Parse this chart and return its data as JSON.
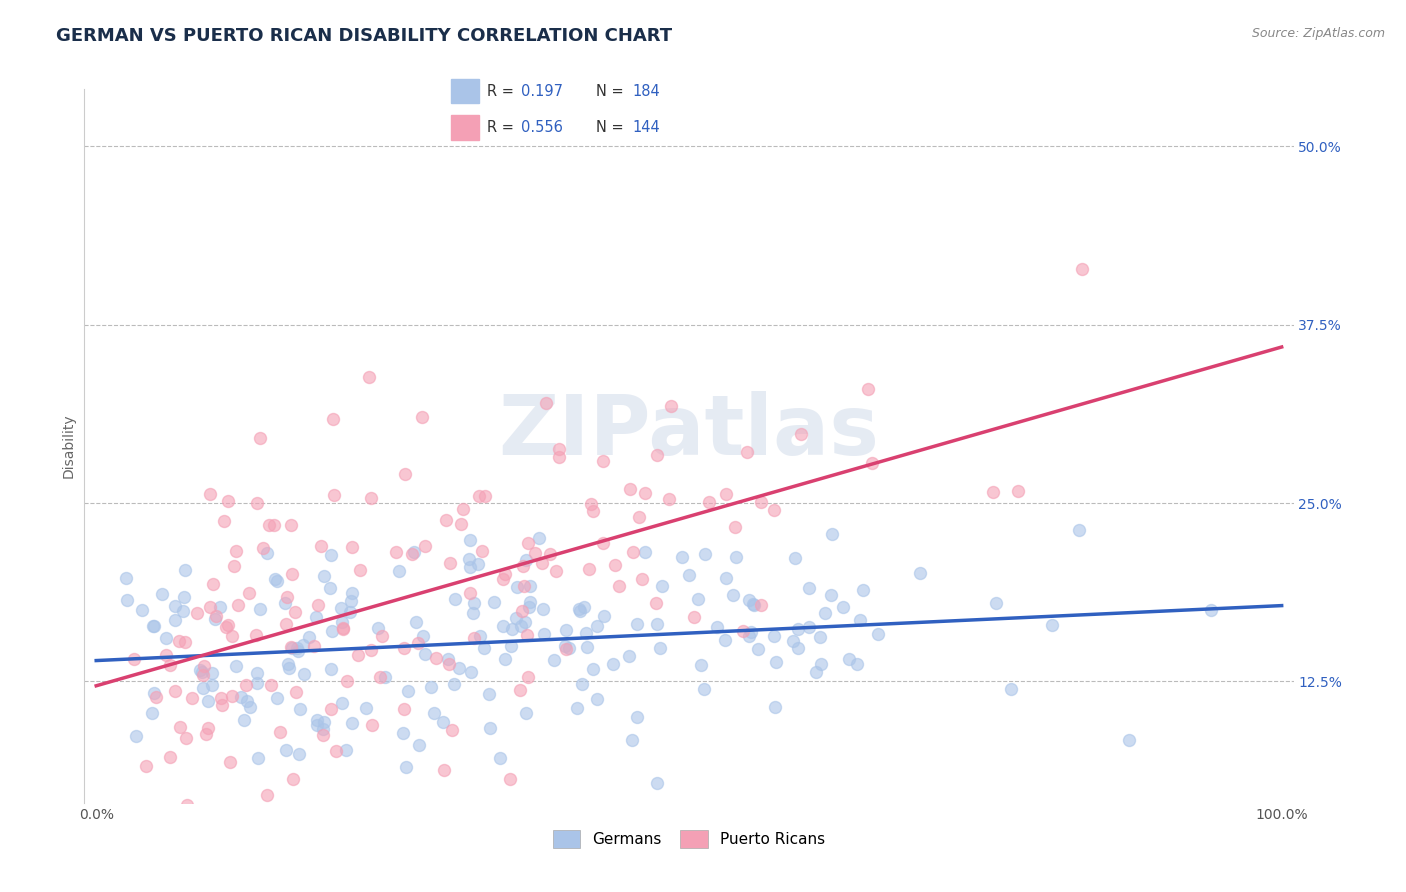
{
  "title": "GERMAN VS PUERTO RICAN DISABILITY CORRELATION CHART",
  "source": "Source: ZipAtlas.com",
  "ylabel": "Disability",
  "R_german": 0.197,
  "N_german": 184,
  "R_puerto": 0.556,
  "N_puerto": 144,
  "german_color": "#aac4e8",
  "puerto_color": "#f4a0b5",
  "german_line_color": "#3060c0",
  "puerto_line_color": "#d94070",
  "title_color": "#1a2e4a",
  "legend_text_color": "#3060c0",
  "background_color": "#ffffff",
  "grid_color": "#bbbbbb",
  "title_fontsize": 13,
  "axis_label_fontsize": 10,
  "tick_fontsize": 10,
  "seed": 7,
  "y_tick_values": [
    0.125,
    0.25,
    0.375,
    0.5
  ],
  "y_tick_labels": [
    "12.5%",
    "25.0%",
    "37.5%",
    "50.0%"
  ],
  "ylim_low": 0.04,
  "ylim_high": 0.54
}
